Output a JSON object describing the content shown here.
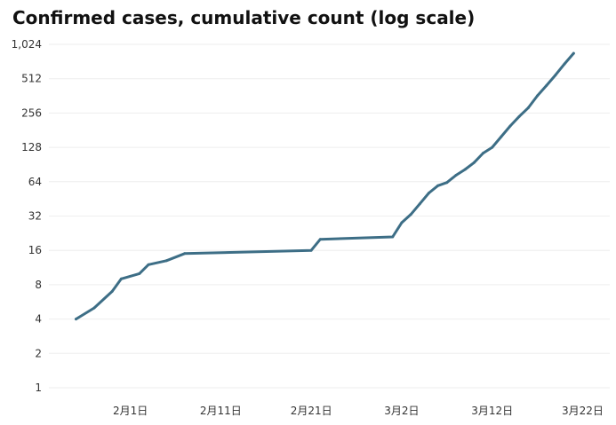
{
  "chart_data": {
    "type": "line",
    "title": "Confirmed cases, cumulative count (log scale)",
    "xlabel": "",
    "ylabel": "",
    "y_scale": "log2",
    "ylim": [
      1,
      1024
    ],
    "y_ticks": [
      {
        "value": 1,
        "label": "1"
      },
      {
        "value": 2,
        "label": "2"
      },
      {
        "value": 4,
        "label": "4"
      },
      {
        "value": 8,
        "label": "8"
      },
      {
        "value": 16,
        "label": "16"
      },
      {
        "value": 32,
        "label": "32"
      },
      {
        "value": 64,
        "label": "64"
      },
      {
        "value": 128,
        "label": "128"
      },
      {
        "value": 256,
        "label": "256"
      },
      {
        "value": 512,
        "label": "512"
      },
      {
        "value": 1024,
        "label": "1,024"
      }
    ],
    "xlim": [
      "2020-01-23",
      "2020-03-25"
    ],
    "x_ticks": [
      {
        "date": "2020-02-01",
        "label": "2月1日"
      },
      {
        "date": "2020-02-11",
        "label": "2月11日"
      },
      {
        "date": "2020-02-21",
        "label": "2月21日"
      },
      {
        "date": "2020-03-02",
        "label": "3月2日"
      },
      {
        "date": "2020-03-12",
        "label": "3月12日"
      },
      {
        "date": "2020-03-22",
        "label": "3月22日"
      }
    ],
    "grid": true,
    "series": [
      {
        "color": "#3d6e86",
        "points": [
          {
            "x": "2020-01-26",
            "y": 4
          },
          {
            "x": "2020-01-28",
            "y": 5
          },
          {
            "x": "2020-01-30",
            "y": 7
          },
          {
            "x": "2020-01-31",
            "y": 9
          },
          {
            "x": "2020-02-02",
            "y": 10
          },
          {
            "x": "2020-02-03",
            "y": 12
          },
          {
            "x": "2020-02-05",
            "y": 13
          },
          {
            "x": "2020-02-07",
            "y": 15
          },
          {
            "x": "2020-02-21",
            "y": 16
          },
          {
            "x": "2020-02-22",
            "y": 20
          },
          {
            "x": "2020-03-01",
            "y": 21
          },
          {
            "x": "2020-03-02",
            "y": 28
          },
          {
            "x": "2020-03-03",
            "y": 33
          },
          {
            "x": "2020-03-04",
            "y": 41
          },
          {
            "x": "2020-03-05",
            "y": 51
          },
          {
            "x": "2020-03-06",
            "y": 59
          },
          {
            "x": "2020-03-07",
            "y": 63
          },
          {
            "x": "2020-03-08",
            "y": 73
          },
          {
            "x": "2020-03-09",
            "y": 82
          },
          {
            "x": "2020-03-10",
            "y": 94
          },
          {
            "x": "2020-03-11",
            "y": 114
          },
          {
            "x": "2020-03-12",
            "y": 128
          },
          {
            "x": "2020-03-13",
            "y": 159
          },
          {
            "x": "2020-03-14",
            "y": 197
          },
          {
            "x": "2020-03-15",
            "y": 239
          },
          {
            "x": "2020-03-16",
            "y": 285
          },
          {
            "x": "2020-03-17",
            "y": 363
          },
          {
            "x": "2020-03-18",
            "y": 446
          },
          {
            "x": "2020-03-19",
            "y": 551
          },
          {
            "x": "2020-03-20",
            "y": 691
          },
          {
            "x": "2020-03-21",
            "y": 854
          }
        ]
      }
    ]
  }
}
